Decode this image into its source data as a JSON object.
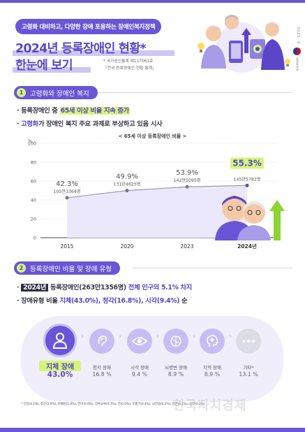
{
  "header": {
    "tag": "고령화 대비하고, 다양한 장애 포용하는 장애인복지정책",
    "title_line1": "2024년 등록장애인 현황*",
    "title_line2": "한눈에 보기",
    "source_line1": "* 국가승인통계 제117061호",
    "source_line2": "「전국 등록장애인 현황 통계」",
    "date": "2025. 4. 17.",
    "ministry": "보건복지부"
  },
  "section1": {
    "number": "1",
    "title": "고령화와 장애인 복지",
    "bullet1_prefix": "· 등록장애인 중 ",
    "bullet1_highlight": "65세 이상 비율 지속 증가",
    "bullet2_prefix": "· ",
    "bullet2_highlight": "고령화",
    "bullet2_suffix": "가 장애인 복지 주요 과제로 부상하고 있음 시사"
  },
  "chart_data": {
    "type": "line",
    "title": "< 65세 이상 등록장애인 비율 >",
    "ylabel": "%",
    "ylim": [
      0,
      100
    ],
    "yticks": [
      0,
      20,
      40,
      60,
      80,
      100
    ],
    "categories": [
      "2015",
      "2020",
      "2023",
      "2024년"
    ],
    "values": [
      42.3,
      49.9,
      53.9,
      55.3
    ],
    "value_labels": [
      "42.3%",
      "49.9%",
      "53.9%",
      "55.3%"
    ],
    "count_labels": [
      "105만3364명",
      "131만4625명",
      "142만5095명",
      "145만5782명"
    ],
    "grid": true,
    "accent": "#5b45c9",
    "highlight_bg": "#d5f57a"
  },
  "section2": {
    "number": "2",
    "title": "등록장애인 비율 및 장애 유형",
    "bullet1_prefix": "· ",
    "bullet1_year": "2024년",
    "bullet1_middle": " 등록장애인(263만1356명) ",
    "bullet1_highlight": "전체 인구의 5.1% 차지",
    "bullet2_prefix": "· 장애유형 비율 ",
    "bullet2_h1": "지체(43.0%)",
    "bullet2_sep1": ", ",
    "bullet2_h2": "청각(16.8%)",
    "bullet2_sep2": ", ",
    "bullet2_h3": "시각(9.4%)",
    "bullet2_suffix": " 순"
  },
  "disability_types": [
    {
      "label": "지체 장애",
      "value": "43.0%",
      "icon": "person-icon"
    },
    {
      "label": "청각 장애",
      "value": "16.8 %",
      "icon": "ear-icon"
    },
    {
      "label": "시각 장애",
      "value": "9.4 %",
      "icon": "eye-icon"
    },
    {
      "label": "뇌병변 장애",
      "value": "8.9 %",
      "icon": "brain-icon"
    },
    {
      "label": "지적 장애",
      "value": "8.9 %",
      "icon": "head-puzzle-icon"
    },
    {
      "label": "기타*",
      "value": "13.1 %",
      "icon": "dots-icon"
    }
  ],
  "footnote": "* 신장(4.2%), 정신(3.9%), 자폐성(1.8%), 언어(0.9%), 장루요루(0.7%), 간(0.6%), 호흡기(0.4%), 뇌전증(0.2%), 안면(0.1%), 심장(0.2%)",
  "watermark": "한국자치경제",
  "colors": {
    "primary": "#6a55d6",
    "accent_green": "#d5f57a",
    "dark": "#2c2c44"
  }
}
